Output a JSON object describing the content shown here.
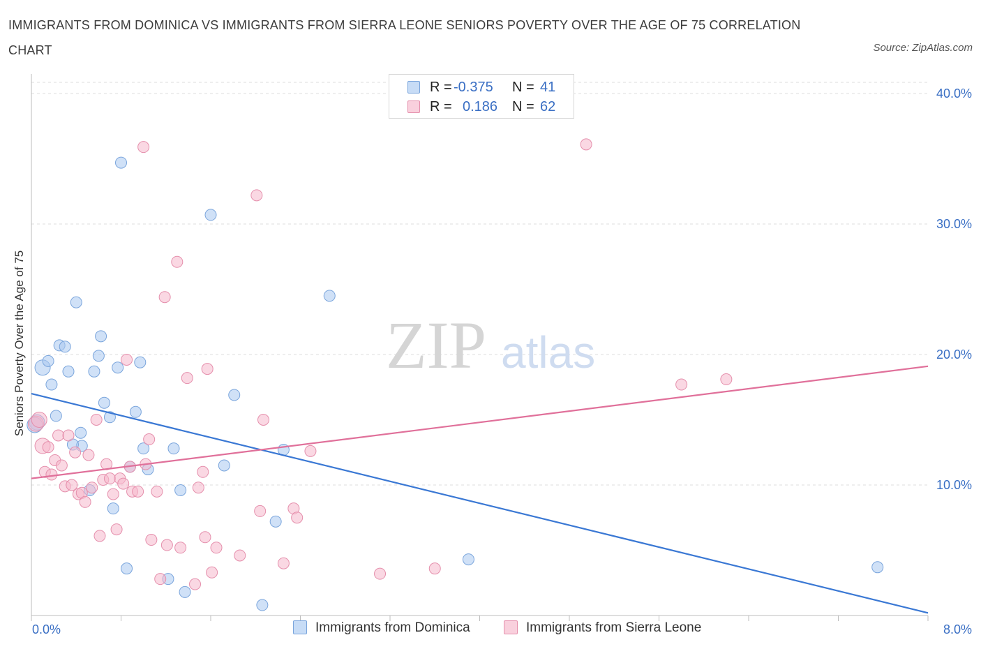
{
  "title": "IMMIGRANTS FROM DOMINICA VS IMMIGRANTS FROM SIERRA LEONE SENIORS POVERTY OVER THE AGE OF 75 CORRELATION CHART",
  "source": "Source: ZipAtlas.com",
  "watermark": {
    "zip": "ZIP",
    "atlas": "atlas"
  },
  "legend": {
    "rows": [
      {
        "r_label": "R =",
        "r_value": "-0.375",
        "n_label": "N =",
        "n_value": "41",
        "color": "#aac8f0"
      },
      {
        "r_label": "R =",
        "r_value": "0.186",
        "n_label": "N =",
        "n_value": "62",
        "color": "#f5b8cc"
      }
    ]
  },
  "bottom_legend": {
    "dominica": "Immigrants from Dominica",
    "sierra_leone": "Immigrants from Sierra Leone"
  },
  "colors": {
    "dominica_fill": "#aac8f0",
    "dominica_stroke": "#7aa5dc",
    "dominica_line": "#3a78d4",
    "sierra_fill": "#f5b8cc",
    "sierra_stroke": "#e58fac",
    "sierra_line": "#e0709a",
    "axis_text": "#3a6fc4"
  },
  "chart_data": {
    "type": "scatter",
    "ylabel": "Seniors Poverty Over the Age of 75",
    "xlim": [
      0,
      8
    ],
    "ylim": [
      0,
      40
    ],
    "x_tick_labels": [
      "0.0%",
      "8.0%"
    ],
    "y_ticks": [
      10,
      20,
      30,
      40
    ],
    "y_tick_labels": [
      "10.0%",
      "20.0%",
      "30.0%",
      "40.0%"
    ],
    "grid": true,
    "legend_position": "top-center",
    "series": [
      {
        "name": "Immigrants from Dominica",
        "points": [
          [
            0.05,
            14.8
          ],
          [
            0.1,
            19.0
          ],
          [
            0.15,
            19.5
          ],
          [
            0.18,
            17.7
          ],
          [
            0.22,
            15.3
          ],
          [
            0.25,
            20.7
          ],
          [
            0.3,
            20.6
          ],
          [
            0.33,
            18.7
          ],
          [
            0.4,
            24.0
          ],
          [
            0.44,
            14.0
          ],
          [
            0.45,
            13.0
          ],
          [
            0.37,
            13.1
          ],
          [
            0.52,
            9.6
          ],
          [
            0.56,
            18.7
          ],
          [
            0.6,
            19.9
          ],
          [
            0.62,
            21.4
          ],
          [
            0.65,
            16.3
          ],
          [
            0.7,
            15.2
          ],
          [
            0.73,
            8.2
          ],
          [
            0.77,
            19.0
          ],
          [
            0.8,
            34.7
          ],
          [
            0.85,
            3.6
          ],
          [
            0.88,
            11.4
          ],
          [
            0.93,
            15.6
          ],
          [
            0.97,
            19.4
          ],
          [
            1.0,
            12.8
          ],
          [
            1.04,
            11.2
          ],
          [
            1.22,
            2.8
          ],
          [
            1.27,
            12.8
          ],
          [
            1.33,
            9.6
          ],
          [
            1.37,
            1.8
          ],
          [
            1.6,
            30.7
          ],
          [
            1.72,
            11.5
          ],
          [
            1.81,
            16.9
          ],
          [
            2.06,
            0.8
          ],
          [
            2.18,
            7.2
          ],
          [
            2.25,
            12.7
          ],
          [
            2.66,
            24.5
          ],
          [
            3.9,
            4.3
          ],
          [
            7.55,
            3.7
          ],
          [
            0.03,
            14.6
          ]
        ]
      },
      {
        "name": "Immigrants from Sierra Leone",
        "points": [
          [
            0.04,
            14.7
          ],
          [
            0.07,
            15.0
          ],
          [
            0.1,
            13.0
          ],
          [
            0.12,
            11.0
          ],
          [
            0.15,
            12.9
          ],
          [
            0.18,
            10.8
          ],
          [
            0.21,
            11.9
          ],
          [
            0.24,
            13.8
          ],
          [
            0.27,
            11.5
          ],
          [
            0.3,
            9.9
          ],
          [
            0.33,
            13.8
          ],
          [
            0.36,
            10.0
          ],
          [
            0.39,
            12.5
          ],
          [
            0.42,
            9.3
          ],
          [
            0.45,
            9.4
          ],
          [
            0.48,
            8.7
          ],
          [
            0.51,
            12.3
          ],
          [
            0.54,
            9.8
          ],
          [
            0.58,
            15.0
          ],
          [
            0.61,
            6.1
          ],
          [
            0.64,
            10.4
          ],
          [
            0.67,
            11.6
          ],
          [
            0.7,
            10.5
          ],
          [
            0.73,
            9.3
          ],
          [
            0.76,
            6.6
          ],
          [
            0.79,
            10.5
          ],
          [
            0.82,
            10.1
          ],
          [
            0.85,
            19.6
          ],
          [
            0.88,
            11.4
          ],
          [
            0.9,
            9.5
          ],
          [
            0.95,
            9.5
          ],
          [
            1.0,
            35.9
          ],
          [
            1.02,
            11.6
          ],
          [
            1.05,
            13.5
          ],
          [
            1.07,
            5.8
          ],
          [
            1.12,
            9.5
          ],
          [
            1.15,
            2.8
          ],
          [
            1.19,
            24.4
          ],
          [
            1.21,
            5.4
          ],
          [
            1.3,
            27.1
          ],
          [
            1.33,
            5.2
          ],
          [
            1.39,
            18.2
          ],
          [
            1.46,
            2.4
          ],
          [
            1.49,
            9.8
          ],
          [
            1.53,
            11.0
          ],
          [
            1.55,
            6.0
          ],
          [
            1.57,
            18.9
          ],
          [
            1.61,
            3.3
          ],
          [
            1.65,
            5.2
          ],
          [
            1.86,
            4.6
          ],
          [
            2.01,
            32.2
          ],
          [
            2.04,
            8.0
          ],
          [
            2.07,
            15.0
          ],
          [
            2.25,
            4.0
          ],
          [
            2.34,
            8.2
          ],
          [
            2.37,
            7.5
          ],
          [
            2.49,
            12.6
          ],
          [
            3.11,
            3.2
          ],
          [
            3.6,
            3.6
          ],
          [
            4.95,
            36.1
          ],
          [
            5.8,
            17.7
          ],
          [
            6.2,
            18.1
          ]
        ]
      }
    ],
    "trendlines": [
      {
        "series": "Immigrants from Dominica",
        "x": [
          0,
          8
        ],
        "y": [
          17.0,
          0.2
        ]
      },
      {
        "series": "Immigrants from Sierra Leone",
        "x": [
          0,
          8
        ],
        "y": [
          10.5,
          19.1
        ]
      }
    ]
  }
}
